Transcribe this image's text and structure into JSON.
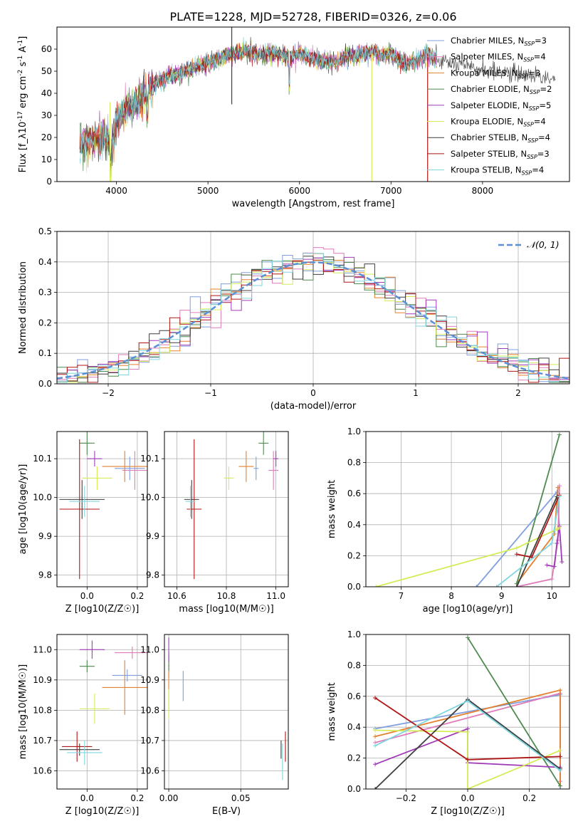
{
  "figure_title": "PLATE=1228, MJD=52728, FIBERID=0326, z=0.06",
  "colors": {
    "chabrier_miles": "#7f9fdf",
    "salpeter_miles": "#e07bb9",
    "kroupa_miles": "#e5812e",
    "chabrier_elodie": "#4d8a4d",
    "salpeter_elodie": "#a03bb8",
    "kroupa_elodie": "#d4ec58",
    "chabrier_stelib": "#3f3f3f",
    "salpeter_stelib": "#b01616",
    "kroupa_stelib": "#7fd6e0",
    "gaussian": "#5b8fd6"
  },
  "chart_data": [
    {
      "id": "spectrum",
      "type": "line",
      "title": "PLATE=1228, MJD=52728, FIBERID=0326, z=0.06",
      "xlabel": "wavelength [Angstrom, rest frame]",
      "ylabel": "Flux [f_λ10^-17 erg cm^-2 s^-1 A^-1]",
      "xlim": [
        3350,
        8950
      ],
      "ylim": [
        0,
        70
      ],
      "xticks": [
        4000,
        5000,
        6000,
        7000,
        8000
      ],
      "yticks": [
        0,
        10,
        20,
        30,
        40,
        50,
        60
      ],
      "grid": false,
      "legend_position": "top-right",
      "spectrum_anchors": {
        "x": [
          3600,
          3700,
          3800,
          3900,
          3950,
          4000,
          4100,
          4200,
          4300,
          4400,
          4500,
          4600,
          4700,
          4800,
          4900,
          5000,
          5100,
          5200,
          5300,
          5400,
          5500,
          5600,
          5700,
          5800,
          5900,
          6000,
          6100,
          6200,
          6300,
          6400,
          6500,
          6600,
          6700,
          6800,
          6900,
          7000,
          7100,
          7200,
          7300,
          7400,
          7500,
          7600,
          7700,
          7800,
          7900,
          8000,
          8100,
          8200,
          8300,
          8400,
          8500,
          8600,
          8700,
          8800
        ],
        "y": [
          16,
          18,
          20,
          22,
          15,
          27,
          32,
          36,
          40,
          44,
          46,
          48,
          49,
          51,
          52,
          54,
          55,
          57,
          58,
          59,
          58,
          57,
          59,
          57,
          56,
          58,
          56,
          55,
          54,
          54,
          56,
          57,
          58,
          59,
          57,
          58,
          55,
          54,
          55,
          57,
          55,
          54,
          53,
          52,
          51,
          51,
          50,
          50,
          49,
          49,
          48,
          48,
          47,
          47
        ]
      },
      "legend": [
        {
          "name": "Chabrier MILES, N_SSP=3",
          "color": "#7f9fdf"
        },
        {
          "name": "Salpeter MILES, N_SSP=4",
          "color": "#e07bb9"
        },
        {
          "name": "Kroupa MILES, N_SSP=3",
          "color": "#e5812e"
        },
        {
          "name": "Chabrier ELODIE, N_SSP=2",
          "color": "#4d8a4d"
        },
        {
          "name": "Salpeter ELODIE, N_SSP=5",
          "color": "#a03bb8"
        },
        {
          "name": "Kroupa ELODIE, N_SSP=4",
          "color": "#d4ec58"
        },
        {
          "name": "Chabrier STELIB, N_SSP=4",
          "color": "#3f3f3f"
        },
        {
          "name": "Salpeter STELIB, N_SSP=3",
          "color": "#b01616"
        },
        {
          "name": "Kroupa STELIB, N_SSP=4",
          "color": "#7fd6e0"
        }
      ]
    },
    {
      "id": "residuals",
      "type": "line",
      "xlabel": "(data-model)/error",
      "ylabel": "Normed distribution",
      "xlim": [
        -2.5,
        2.5
      ],
      "ylim": [
        0,
        0.5
      ],
      "xticks": [
        -2,
        -1,
        0,
        1,
        2
      ],
      "yticks": [
        0.0,
        0.1,
        0.2,
        0.3,
        0.4,
        0.5
      ],
      "grid": true,
      "legend_position": "top-right",
      "legend": [
        {
          "name": "𝒩(0, 1)",
          "color": "#5b8fd6"
        }
      ],
      "bin_width": 0.1
    },
    {
      "id": "age_vs_Z",
      "type": "scatter",
      "xlabel": "Z [log10(Z/Z☉)]",
      "ylabel": "age [log10(age/yr)]",
      "xlim": [
        -0.12,
        0.24
      ],
      "ylim": [
        9.77,
        10.17
      ],
      "xticks": [
        0.0,
        0.2
      ],
      "yticks": [
        9.8,
        9.9,
        10.0,
        10.1
      ],
      "grid": true,
      "points": [
        {
          "series": "Chabrier MILES",
          "x": 0.17,
          "y": 10.075,
          "xerr": 0.06,
          "yerr": 0.03,
          "color": "#7f9fdf"
        },
        {
          "series": "Salpeter MILES",
          "x": 0.19,
          "y": 10.07,
          "xerr": 0.05,
          "yerr": 0.05,
          "color": "#e07bb9"
        },
        {
          "series": "Kroupa MILES",
          "x": 0.15,
          "y": 10.08,
          "xerr": 0.09,
          "yerr": 0.04,
          "color": "#e5812e"
        },
        {
          "series": "Chabrier ELODIE",
          "x": 0.0,
          "y": 10.14,
          "xerr": 0.03,
          "yerr": 0.03,
          "color": "#4d8a4d"
        },
        {
          "series": "Salpeter ELODIE",
          "x": 0.03,
          "y": 10.1,
          "xerr": 0.03,
          "yerr": 0.02,
          "color": "#a03bb8"
        },
        {
          "series": "Kroupa ELODIE",
          "x": 0.04,
          "y": 10.05,
          "xerr": 0.06,
          "yerr": 0.03,
          "color": "#d4ec58"
        },
        {
          "series": "Chabrier STELIB",
          "x": -0.02,
          "y": 9.995,
          "xerr": 0.09,
          "yerr": 0.05,
          "color": "#3f3f3f"
        },
        {
          "series": "Salpeter STELIB",
          "x": -0.03,
          "y": 9.97,
          "xerr": 0.08,
          "yerr": 0.18,
          "color": "#b01616"
        },
        {
          "series": "Kroupa STELIB",
          "x": -0.01,
          "y": 9.99,
          "xerr": 0.06,
          "yerr": 0.04,
          "color": "#7fd6e0"
        }
      ]
    },
    {
      "id": "age_vs_mass",
      "type": "scatter",
      "xlabel": "mass [log10(M/M☉)]",
      "ylabel": "",
      "xlim": [
        10.55,
        11.05
      ],
      "ylim": [
        9.77,
        10.17
      ],
      "xticks": [
        10.6,
        10.8,
        11.0
      ],
      "yticks": [
        9.8,
        9.9,
        10.0,
        10.1
      ],
      "grid": true,
      "points": [
        {
          "series": "Chabrier MILES",
          "x": 10.92,
          "y": 10.075,
          "xerr": 0.01,
          "yerr": 0.03,
          "color": "#7f9fdf"
        },
        {
          "series": "Salpeter MILES",
          "x": 10.99,
          "y": 10.07,
          "xerr": 0.02,
          "yerr": 0.05,
          "color": "#e07bb9"
        },
        {
          "series": "Kroupa MILES",
          "x": 10.88,
          "y": 10.08,
          "xerr": 0.03,
          "yerr": 0.04,
          "color": "#e5812e"
        },
        {
          "series": "Chabrier ELODIE",
          "x": 10.95,
          "y": 10.14,
          "xerr": 0.02,
          "yerr": 0.03,
          "color": "#4d8a4d"
        },
        {
          "series": "Salpeter ELODIE",
          "x": 11.0,
          "y": 10.1,
          "xerr": 0.01,
          "yerr": 0.02,
          "color": "#a03bb8"
        },
        {
          "series": "Kroupa ELODIE",
          "x": 10.81,
          "y": 10.05,
          "xerr": 0.02,
          "yerr": 0.03,
          "color": "#d4ec58"
        },
        {
          "series": "Chabrier STELIB",
          "x": 10.66,
          "y": 9.995,
          "xerr": 0.03,
          "yerr": 0.05,
          "color": "#3f3f3f"
        },
        {
          "series": "Salpeter STELIB",
          "x": 10.67,
          "y": 9.97,
          "xerr": 0.03,
          "yerr": 0.18,
          "color": "#b01616"
        },
        {
          "series": "Kroupa STELIB",
          "x": 10.655,
          "y": 9.99,
          "xerr": 0.02,
          "yerr": 0.04,
          "color": "#7fd6e0"
        }
      ]
    },
    {
      "id": "weight_vs_age",
      "type": "line",
      "xlabel": "age [log10(age/yr)]",
      "ylabel": "mass weight",
      "xlim": [
        6.3,
        10.35
      ],
      "ylim": [
        0,
        1
      ],
      "xticks": [
        7,
        8,
        9,
        10
      ],
      "yticks": [
        0.0,
        0.2,
        0.4,
        0.6,
        0.8,
        1.0
      ],
      "grid": true,
      "series": [
        {
          "name": "Chabrier MILES",
          "color": "#7f9fdf",
          "x": [
            8.5,
            10.1,
            10.15
          ],
          "y": [
            0.0,
            0.61,
            0.39
          ]
        },
        {
          "name": "Salpeter MILES",
          "color": "#e07bb9",
          "x": [
            9.3,
            10.0,
            10.12,
            10.15
          ],
          "y": [
            0.0,
            0.05,
            0.3,
            0.65
          ]
        },
        {
          "name": "Kroupa MILES",
          "color": "#e5812e",
          "x": [
            9.3,
            10.05,
            10.12
          ],
          "y": [
            0.02,
            0.34,
            0.64
          ]
        },
        {
          "name": "Chabrier ELODIE",
          "color": "#4d8a4d",
          "x": [
            9.3,
            10.15
          ],
          "y": [
            0.02,
            0.98
          ]
        },
        {
          "name": "Salpeter ELODIE",
          "color": "#a03bb8",
          "x": [
            9.9,
            10.05,
            10.1,
            10.15,
            10.2
          ],
          "y": [
            0.14,
            0.13,
            0.28,
            0.39,
            0.16
          ]
        },
        {
          "name": "Kroupa ELODIE",
          "color": "#d4ec58",
          "x": [
            6.5,
            9.3,
            10.1,
            10.15
          ],
          "y": [
            0.0,
            0.25,
            0.37,
            0.38
          ]
        },
        {
          "name": "Chabrier STELIB",
          "color": "#3f3f3f",
          "x": [
            9.3,
            10.1
          ],
          "y": [
            0.0,
            0.58
          ]
        },
        {
          "name": "Salpeter STELIB",
          "color": "#b01616",
          "x": [
            9.3,
            9.6,
            10.15
          ],
          "y": [
            0.21,
            0.19,
            0.59
          ]
        },
        {
          "name": "Kroupa STELIB",
          "color": "#7fd6e0",
          "x": [
            8.9,
            10.0,
            10.15
          ],
          "y": [
            0.0,
            0.28,
            0.58
          ]
        }
      ]
    },
    {
      "id": "mass_vs_Z",
      "type": "scatter",
      "xlabel": "Z [log10(Z/Z☉)]",
      "ylabel": "mass [log10(M/M☉)]",
      "xlim": [
        -0.12,
        0.24
      ],
      "ylim": [
        10.54,
        11.05
      ],
      "xticks": [
        0.0,
        0.2
      ],
      "yticks": [
        10.6,
        10.7,
        10.8,
        10.9,
        11.0
      ],
      "grid": true,
      "points": [
        {
          "series": "Chabrier MILES",
          "x": 0.16,
          "y": 10.915,
          "xerr": 0.06,
          "yerr": 0.02,
          "color": "#7f9fdf"
        },
        {
          "series": "Salpeter MILES",
          "x": 0.18,
          "y": 10.99,
          "xerr": 0.07,
          "yerr": 0.02,
          "color": "#e07bb9"
        },
        {
          "series": "Kroupa MILES",
          "x": 0.15,
          "y": 10.875,
          "xerr": 0.09,
          "yerr": 0.09,
          "color": "#e5812e"
        },
        {
          "series": "Chabrier ELODIE",
          "x": 0.0,
          "y": 10.945,
          "xerr": 0.03,
          "yerr": 0.02,
          "color": "#4d8a4d"
        },
        {
          "series": "Salpeter ELODIE",
          "x": 0.02,
          "y": 11.0,
          "xerr": 0.05,
          "yerr": 0.03,
          "color": "#a03bb8"
        },
        {
          "series": "Kroupa ELODIE",
          "x": 0.03,
          "y": 10.805,
          "xerr": 0.06,
          "yerr": 0.05,
          "color": "#d4ec58"
        },
        {
          "series": "Chabrier STELIB",
          "x": -0.03,
          "y": 10.67,
          "xerr": 0.08,
          "yerr": 0.02,
          "color": "#3f3f3f"
        },
        {
          "series": "Salpeter STELIB",
          "x": -0.04,
          "y": 10.68,
          "xerr": 0.06,
          "yerr": 0.05,
          "color": "#b01616"
        },
        {
          "series": "Kroupa STELIB",
          "x": -0.01,
          "y": 10.66,
          "xerr": 0.07,
          "yerr": 0.04,
          "color": "#7fd6e0"
        }
      ]
    },
    {
      "id": "mass_vs_ebv",
      "type": "scatter",
      "xlabel": "E(B-V)",
      "ylabel": "",
      "xlim": [
        -0.003,
        0.083
      ],
      "ylim": [
        10.54,
        11.05
      ],
      "xticks": [
        0.0,
        0.05
      ],
      "yticks": [
        10.6,
        10.7,
        10.8,
        10.9,
        11.0
      ],
      "grid": true,
      "points": [
        {
          "series": "Chabrier MILES",
          "x": 0.01,
          "y": 10.88,
          "yerr": 0.05,
          "color": "#7f9fdf"
        },
        {
          "series": "Salpeter MILES",
          "x": 0.0,
          "y": 10.95,
          "yerr": 0.04,
          "color": "#e07bb9"
        },
        {
          "series": "Kroupa MILES",
          "x": 0.0,
          "y": 10.87,
          "yerr": 0.08,
          "color": "#e5812e"
        },
        {
          "series": "Chabrier ELODIE",
          "x": 0.0,
          "y": 10.96,
          "yerr": 0.03,
          "color": "#4d8a4d"
        },
        {
          "series": "Salpeter ELODIE",
          "x": 0.0,
          "y": 11.0,
          "yerr": 0.04,
          "color": "#a03bb8"
        },
        {
          "series": "Kroupa ELODIE",
          "x": 0.0,
          "y": 10.82,
          "yerr": 0.05,
          "color": "#d4ec58"
        },
        {
          "series": "Chabrier STELIB",
          "x": 0.078,
          "y": 10.67,
          "yerr": 0.03,
          "color": "#3f3f3f"
        },
        {
          "series": "Salpeter STELIB",
          "x": 0.081,
          "y": 10.68,
          "yerr": 0.05,
          "color": "#b01616"
        },
        {
          "series": "Kroupa STELIB",
          "x": 0.079,
          "y": 10.63,
          "yerr": 0.06,
          "color": "#7fd6e0"
        }
      ]
    },
    {
      "id": "weight_vs_Z",
      "type": "line",
      "xlabel": "Z [log10(Z/Z☉)]",
      "ylabel": "mass weight",
      "xlim": [
        -0.33,
        0.33
      ],
      "ylim": [
        0,
        1
      ],
      "xticks": [
        -0.2,
        0.0,
        0.2
      ],
      "yticks": [
        0.0,
        0.2,
        0.4,
        0.6,
        0.8,
        1.0
      ],
      "grid": true,
      "series": [
        {
          "name": "Chabrier MILES",
          "color": "#7f9fdf",
          "x": [
            -0.3,
            0.3,
            0.3
          ],
          "y": [
            0.39,
            0.61,
            0.0
          ]
        },
        {
          "name": "Salpeter MILES",
          "color": "#e07bb9",
          "x": [
            -0.3,
            0.3,
            0.3
          ],
          "y": [
            0.3,
            0.62,
            0.05
          ]
        },
        {
          "name": "Kroupa MILES",
          "color": "#e5812e",
          "x": [
            -0.3,
            0.3,
            0.3
          ],
          "y": [
            0.34,
            0.64,
            0.02
          ]
        },
        {
          "name": "Chabrier ELODIE",
          "color": "#4d8a4d",
          "x": [
            0.0,
            0.3
          ],
          "y": [
            0.98,
            0.02
          ]
        },
        {
          "name": "Salpeter ELODIE",
          "color": "#a03bb8",
          "x": [
            -0.3,
            0.0,
            0.0,
            0.3
          ],
          "y": [
            0.16,
            0.39,
            0.17,
            0.14
          ]
        },
        {
          "name": "Kroupa ELODIE",
          "color": "#d4ec58",
          "x": [
            -0.3,
            0.0,
            0.0,
            0.3
          ],
          "y": [
            0.38,
            0.37,
            0.0,
            0.25
          ]
        },
        {
          "name": "Chabrier STELIB",
          "color": "#3f3f3f",
          "x": [
            -0.3,
            0.0,
            0.3
          ],
          "y": [
            0.0,
            0.58,
            0.13
          ]
        },
        {
          "name": "Salpeter STELIB",
          "color": "#b01616",
          "x": [
            -0.3,
            0.0,
            0.3
          ],
          "y": [
            0.59,
            0.19,
            0.21
          ]
        },
        {
          "name": "Kroupa STELIB",
          "color": "#7fd6e0",
          "x": [
            -0.3,
            0.0,
            0.3
          ],
          "y": [
            0.28,
            0.57,
            0.12
          ]
        }
      ]
    }
  ]
}
